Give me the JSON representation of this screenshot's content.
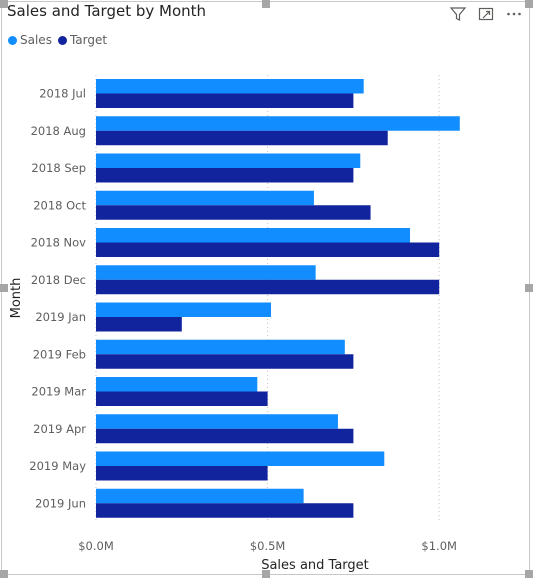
{
  "header": {
    "title": "Sales and Target by Month",
    "icons": [
      "filter-icon",
      "focus-mode-icon",
      "more-options-icon"
    ]
  },
  "legend": {
    "items": [
      {
        "label": "Sales",
        "color": "#118DFF"
      },
      {
        "label": "Target",
        "color": "#12239E"
      }
    ]
  },
  "chart_data": {
    "type": "bar",
    "orientation": "horizontal",
    "title": "Sales and Target by Month",
    "xlabel": "Sales and Target",
    "ylabel": "Month",
    "categories": [
      "2018 Jul",
      "2018 Aug",
      "2018 Sep",
      "2018 Oct",
      "2018 Nov",
      "2018 Dec",
      "2019 Jan",
      "2019 Feb",
      "2019 Mar",
      "2019 Apr",
      "2019 May",
      "2019 Jun"
    ],
    "series": [
      {
        "name": "Sales",
        "color": "#118DFF",
        "values": [
          780000,
          1060000,
          770000,
          635000,
          915000,
          640000,
          510000,
          725000,
          470000,
          705000,
          840000,
          605000
        ]
      },
      {
        "name": "Target",
        "color": "#12239E",
        "values": [
          750000,
          850000,
          750000,
          800000,
          1000000,
          1000000,
          250000,
          750000,
          500000,
          750000,
          500000,
          750000
        ]
      }
    ],
    "xlim": [
      0,
      1250000
    ],
    "x_ticks": [
      {
        "value": 0,
        "label": "$0.0M"
      },
      {
        "value": 500000,
        "label": "$0.5M"
      },
      {
        "value": 1000000,
        "label": "$1.0M"
      }
    ],
    "grid": true,
    "legend_position": "top-left"
  }
}
